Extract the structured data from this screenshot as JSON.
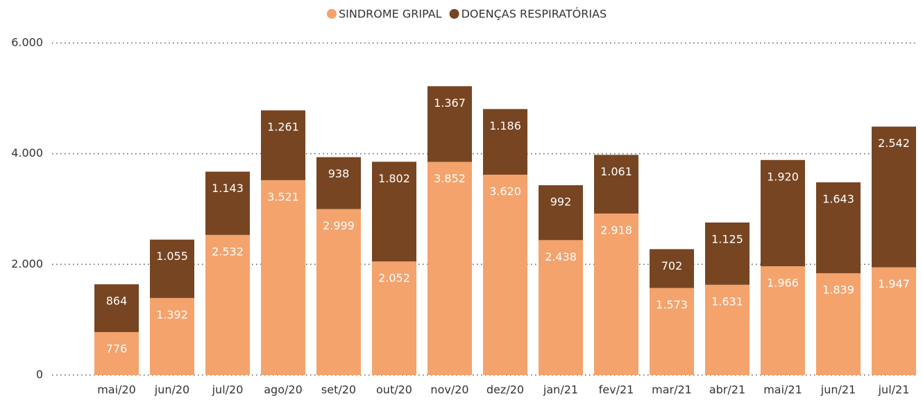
{
  "chart_data": {
    "type": "stacked_bar",
    "categories": [
      "mai/20",
      "jun/20",
      "jul/20",
      "ago/20",
      "set/20",
      "out/20",
      "nov/20",
      "dez/20",
      "jan/21",
      "fev/21",
      "mar/21",
      "abr/21",
      "mai/21",
      "jun/21",
      "jul/21"
    ],
    "series": [
      {
        "name": "SINDROME GRIPAL",
        "color": "#f4a36d",
        "values": [
          776,
          1392,
          2532,
          3521,
          2999,
          2052,
          3852,
          3620,
          2438,
          2918,
          1573,
          1631,
          1966,
          1839,
          1947
        ],
        "value_labels": [
          "776",
          "1.392",
          "2.532",
          "3.521",
          "2.999",
          "2.052",
          "3.852",
          "3.620",
          "2.438",
          "2.918",
          "1.573",
          "1.631",
          "1.966",
          "1.839",
          "1.947"
        ]
      },
      {
        "name": "DOENÇAS RESPIRATÓRIAS",
        "color": "#774522",
        "values": [
          864,
          1055,
          1143,
          1261,
          938,
          1802,
          1367,
          1186,
          992,
          1061,
          702,
          1125,
          1920,
          1643,
          2542
        ],
        "value_labels": [
          "864",
          "1.055",
          "1.143",
          "1.261",
          "938",
          "1.802",
          "1.367",
          "1.186",
          "992",
          "1.061",
          "702",
          "1.125",
          "1.920",
          "1.643",
          "2.542"
        ]
      }
    ],
    "ylim": [
      0,
      6000
    ],
    "yticks": [
      0,
      {
        "value": 2000,
        "label": "2.000"
      },
      {
        "value": 4000,
        "label": "4.000"
      },
      {
        "value": 6000,
        "label": "6.000"
      }
    ],
    "grid": true,
    "legend": "top"
  }
}
